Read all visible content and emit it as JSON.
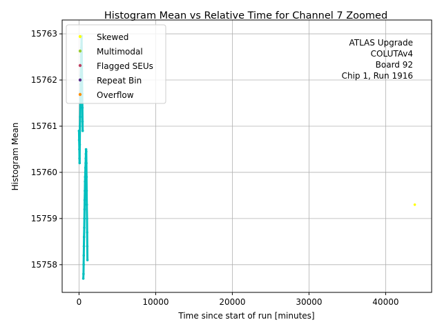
{
  "chart_data": {
    "type": "scatter",
    "title": "Histogram Mean vs Relative Time for Channel 7 Zoomed",
    "xlabel": "Time since start of run [minutes]",
    "ylabel": "Histogram Mean",
    "xlim": [
      -2200,
      46000
    ],
    "ylim": [
      15757.4,
      15763.3
    ],
    "xticks": [
      0,
      10000,
      20000,
      30000,
      40000
    ],
    "xtick_labels": [
      "0",
      "10000",
      "20000",
      "30000",
      "40000"
    ],
    "yticks": [
      15758,
      15759,
      15760,
      15761,
      15762,
      15763
    ],
    "ytick_labels": [
      "15758",
      "15759",
      "15760",
      "15761",
      "15762",
      "15763"
    ],
    "grid": true,
    "legend_position": "top-left",
    "legend": [
      {
        "label": "Skewed",
        "color": "#ffff00"
      },
      {
        "label": "Multimodal",
        "color": "#9acd32"
      },
      {
        "label": "Flagged SEUs",
        "color": "#c04060"
      },
      {
        "label": "Repeat Bin",
        "color": "#5a2d8a"
      },
      {
        "label": "Overflow",
        "color": "#ff8c00"
      }
    ],
    "annotation": [
      "ATLAS Upgrade",
      "COLUTAv4",
      "Board 92",
      "Chip 1, Run 1916"
    ],
    "series": [
      {
        "color": "#00bfbf",
        "points": [
          [
            0,
            15760.9
          ],
          [
            20,
            15760.7
          ],
          [
            40,
            15760.5
          ],
          [
            60,
            15760.3
          ],
          [
            80,
            15760.2
          ],
          [
            100,
            15760.6
          ],
          [
            120,
            15761.0
          ],
          [
            150,
            15761.2
          ],
          [
            180,
            15761.5
          ],
          [
            200,
            15761.7
          ],
          [
            220,
            15761.9
          ],
          [
            240,
            15762.1
          ],
          [
            260,
            15762.3
          ],
          [
            280,
            15762.5
          ],
          [
            300,
            15762.7
          ],
          [
            320,
            15762.9
          ],
          [
            340,
            15762.95
          ],
          [
            360,
            15762.6
          ],
          [
            380,
            15762.3
          ],
          [
            400,
            15762.0
          ],
          [
            420,
            15761.7
          ],
          [
            440,
            15761.4
          ],
          [
            460,
            15761.1
          ],
          [
            480,
            15760.9
          ],
          [
            560,
            15757.7
          ],
          [
            580,
            15757.8
          ],
          [
            600,
            15758.0
          ],
          [
            620,
            15758.2
          ],
          [
            640,
            15758.4
          ],
          [
            660,
            15758.6
          ],
          [
            680,
            15758.8
          ],
          [
            700,
            15759.0
          ],
          [
            720,
            15759.2
          ],
          [
            740,
            15759.4
          ],
          [
            760,
            15759.6
          ],
          [
            780,
            15759.8
          ],
          [
            800,
            15759.9
          ],
          [
            820,
            15760.0
          ],
          [
            840,
            15760.1
          ],
          [
            860,
            15760.2
          ],
          [
            880,
            15760.3
          ],
          [
            900,
            15760.4
          ],
          [
            920,
            15760.5
          ],
          [
            940,
            15760.45
          ],
          [
            960,
            15760.2
          ],
          [
            980,
            15759.9
          ],
          [
            1000,
            15759.6
          ],
          [
            1020,
            15759.3
          ],
          [
            1040,
            15759.0
          ],
          [
            1060,
            15758.7
          ],
          [
            1080,
            15758.4
          ],
          [
            1100,
            15758.1
          ]
        ]
      },
      {
        "color": "#ffff00",
        "points": [
          [
            43800,
            15759.3
          ]
        ]
      }
    ]
  }
}
